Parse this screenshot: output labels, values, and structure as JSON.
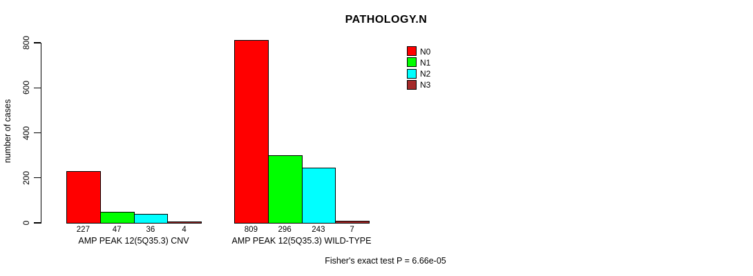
{
  "chart_data": {
    "type": "bar",
    "title": "PATHOLOGY.N",
    "ylabel": "number of cases",
    "xlabel": "",
    "ylim": [
      0,
      800
    ],
    "yticks": [
      0,
      200,
      400,
      600,
      800
    ],
    "grid": false,
    "legend_position": "top-right",
    "categories": [
      "AMP PEAK 12(5Q35.3) CNV",
      "AMP PEAK 12(5Q35.3) WILD-TYPE"
    ],
    "series": [
      {
        "name": "N0",
        "color": "#FF0000",
        "values": [
          227,
          809
        ]
      },
      {
        "name": "N1",
        "color": "#00FF00",
        "values": [
          47,
          296
        ]
      },
      {
        "name": "N2",
        "color": "#00FFFF",
        "values": [
          36,
          243
        ]
      },
      {
        "name": "N3",
        "color": "#A52A2A",
        "values": [
          4,
          7
        ]
      }
    ],
    "bar_value_labels": [
      [
        227,
        47,
        36,
        4
      ],
      [
        809,
        296,
        243,
        7
      ]
    ],
    "annotation": "Fisher's exact test P = 6.66e-05",
    "colors": {
      "background": "#FFFFFF",
      "axis": "#000000",
      "text": "#000000"
    }
  }
}
